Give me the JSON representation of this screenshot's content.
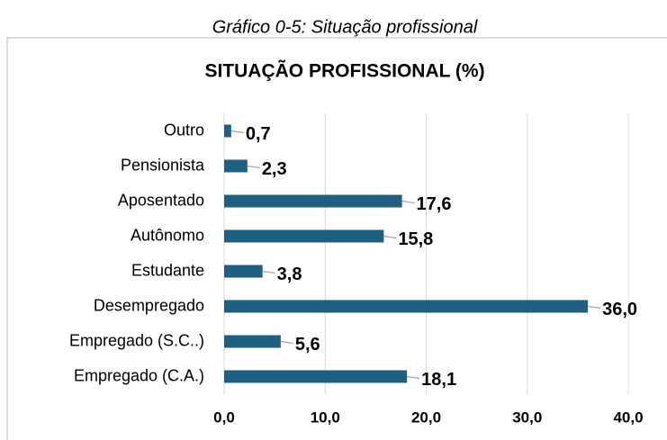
{
  "chart_data": {
    "type": "bar",
    "orientation": "horizontal",
    "caption": "Gráfico 0-5: Situação profissional",
    "title": "SITUAÇÃO PROFISSIONAL (%)",
    "categories": [
      "Outro",
      "Pensionista",
      "Aposentado",
      "Autônomo",
      "Estudante",
      "Desempregado",
      "Empregado (S.C..)",
      "Empregado (C.A.)"
    ],
    "values": [
      0.7,
      2.3,
      17.6,
      15.8,
      3.8,
      36.0,
      5.6,
      18.1
    ],
    "value_labels": [
      "0,7",
      "2,3",
      "17,6",
      "15,8",
      "3,8",
      "36,0",
      "5,6",
      "18,1"
    ],
    "color": "#1f5f80",
    "xlim": [
      0,
      40
    ],
    "xticks": [
      {
        "value": 0,
        "label": "0,0"
      },
      {
        "value": 10,
        "label": "10,0"
      },
      {
        "value": 20,
        "label": "20,0"
      },
      {
        "value": 30,
        "label": "30,0"
      },
      {
        "value": 40,
        "label": "40,0"
      }
    ],
    "grid": true
  }
}
